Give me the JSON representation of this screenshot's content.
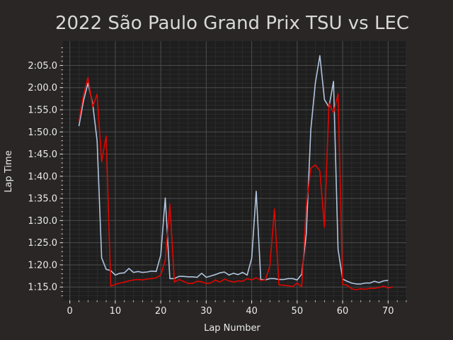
{
  "chart_data": {
    "type": "line",
    "title": "2022 São Paulo Grand Prix TSU vs LEC",
    "xlabel": "Lap Number",
    "ylabel": "Lap Time",
    "xlim": [
      -1.5,
      74
    ],
    "ylim": [
      72.0,
      130.5
    ],
    "xticks": [
      0,
      10,
      20,
      30,
      40,
      50,
      60,
      70
    ],
    "xtick_labels": [
      "0",
      "10",
      "20",
      "30",
      "40",
      "50",
      "60",
      "70"
    ],
    "yticks": [
      75,
      80,
      85,
      90,
      95,
      100,
      105,
      110,
      115,
      120,
      125
    ],
    "ytick_labels": [
      "1:15.0",
      "1:20.0",
      "1:25.0",
      "1:30.0",
      "1:35.0",
      "1:40.0",
      "1:45.0",
      "1:50.0",
      "1:55.0",
      "2:00.0",
      "2:05.0"
    ],
    "grid": true,
    "colors": {
      "background": "#292625",
      "plot_area": "#1e1e1e",
      "grid_major": "#4d4d4d",
      "grid_minor": "#333333",
      "text": "#ebebeb"
    },
    "series": [
      {
        "color": "#b0c4de",
        "x": [
          2,
          3,
          4,
          5,
          6,
          7,
          8,
          9,
          10,
          11,
          12,
          13,
          14,
          15,
          16,
          17,
          18,
          19,
          20,
          21,
          22,
          23,
          24,
          25,
          26,
          27,
          28,
          29,
          30,
          31,
          32,
          33,
          34,
          35,
          36,
          37,
          38,
          39,
          40,
          41,
          42,
          43,
          44,
          45,
          46,
          47,
          48,
          49,
          50,
          51,
          52,
          53,
          54,
          55,
          56,
          57,
          58,
          59,
          60,
          61,
          62,
          63,
          64,
          65,
          66,
          67,
          68,
          69,
          70
        ],
        "y": [
          111.3,
          117.0,
          121.0,
          116.5,
          108.0,
          81.6,
          79.0,
          78.7,
          77.7,
          78.1,
          78.2,
          79.2,
          78.3,
          78.5,
          78.3,
          78.4,
          78.6,
          78.5,
          82.2,
          95.1,
          76.9,
          76.9,
          77.4,
          77.4,
          77.3,
          77.3,
          77.2,
          78.1,
          77.2,
          77.5,
          77.8,
          78.2,
          78.4,
          77.7,
          78.1,
          77.8,
          78.3,
          77.7,
          81.5,
          96.6,
          76.7,
          76.6,
          76.9,
          76.9,
          76.7,
          76.7,
          76.9,
          76.9,
          76.6,
          77.9,
          87.0,
          110.5,
          121.0,
          127.2,
          117.3,
          115.6,
          121.4,
          83.5,
          76.8,
          76.3,
          75.9,
          75.7,
          75.7,
          75.9,
          75.9,
          76.3,
          76.0,
          76.4,
          76.5
        ]
      },
      {
        "color": "#e10600",
        "x": [
          2,
          3,
          4,
          5,
          6,
          7,
          8,
          9,
          10,
          11,
          12,
          13,
          14,
          15,
          16,
          17,
          18,
          19,
          20,
          21,
          22,
          23,
          24,
          25,
          26,
          27,
          28,
          29,
          30,
          31,
          32,
          33,
          34,
          35,
          36,
          37,
          38,
          39,
          40,
          41,
          42,
          43,
          44,
          45,
          46,
          47,
          48,
          49,
          50,
          51,
          52,
          53,
          54,
          55,
          56,
          57,
          58,
          59,
          60,
          61,
          62,
          63,
          64,
          65,
          66,
          67,
          68,
          69,
          70,
          71
        ],
        "y": [
          112.5,
          118.3,
          122.3,
          115.7,
          118.5,
          103.3,
          109.1,
          75.2,
          75.6,
          75.9,
          76.1,
          76.4,
          76.6,
          76.7,
          76.6,
          76.8,
          76.9,
          77.1,
          77.7,
          81.0,
          93.7,
          76.1,
          76.7,
          76.3,
          75.8,
          75.8,
          76.3,
          76.2,
          75.8,
          75.9,
          76.6,
          76.1,
          76.8,
          76.4,
          76.1,
          76.4,
          76.3,
          76.9,
          76.6,
          77.1,
          76.5,
          76.6,
          79.8,
          92.6,
          75.5,
          75.4,
          75.3,
          75.1,
          75.9,
          75.1,
          93.2,
          101.8,
          102.6,
          101.2,
          88.5,
          116.5,
          114.3,
          118.6,
          75.6,
          75.4,
          74.6,
          74.4,
          74.6,
          74.5,
          74.7,
          74.7,
          74.9,
          75.2,
          74.8,
          75.0
        ]
      }
    ]
  }
}
